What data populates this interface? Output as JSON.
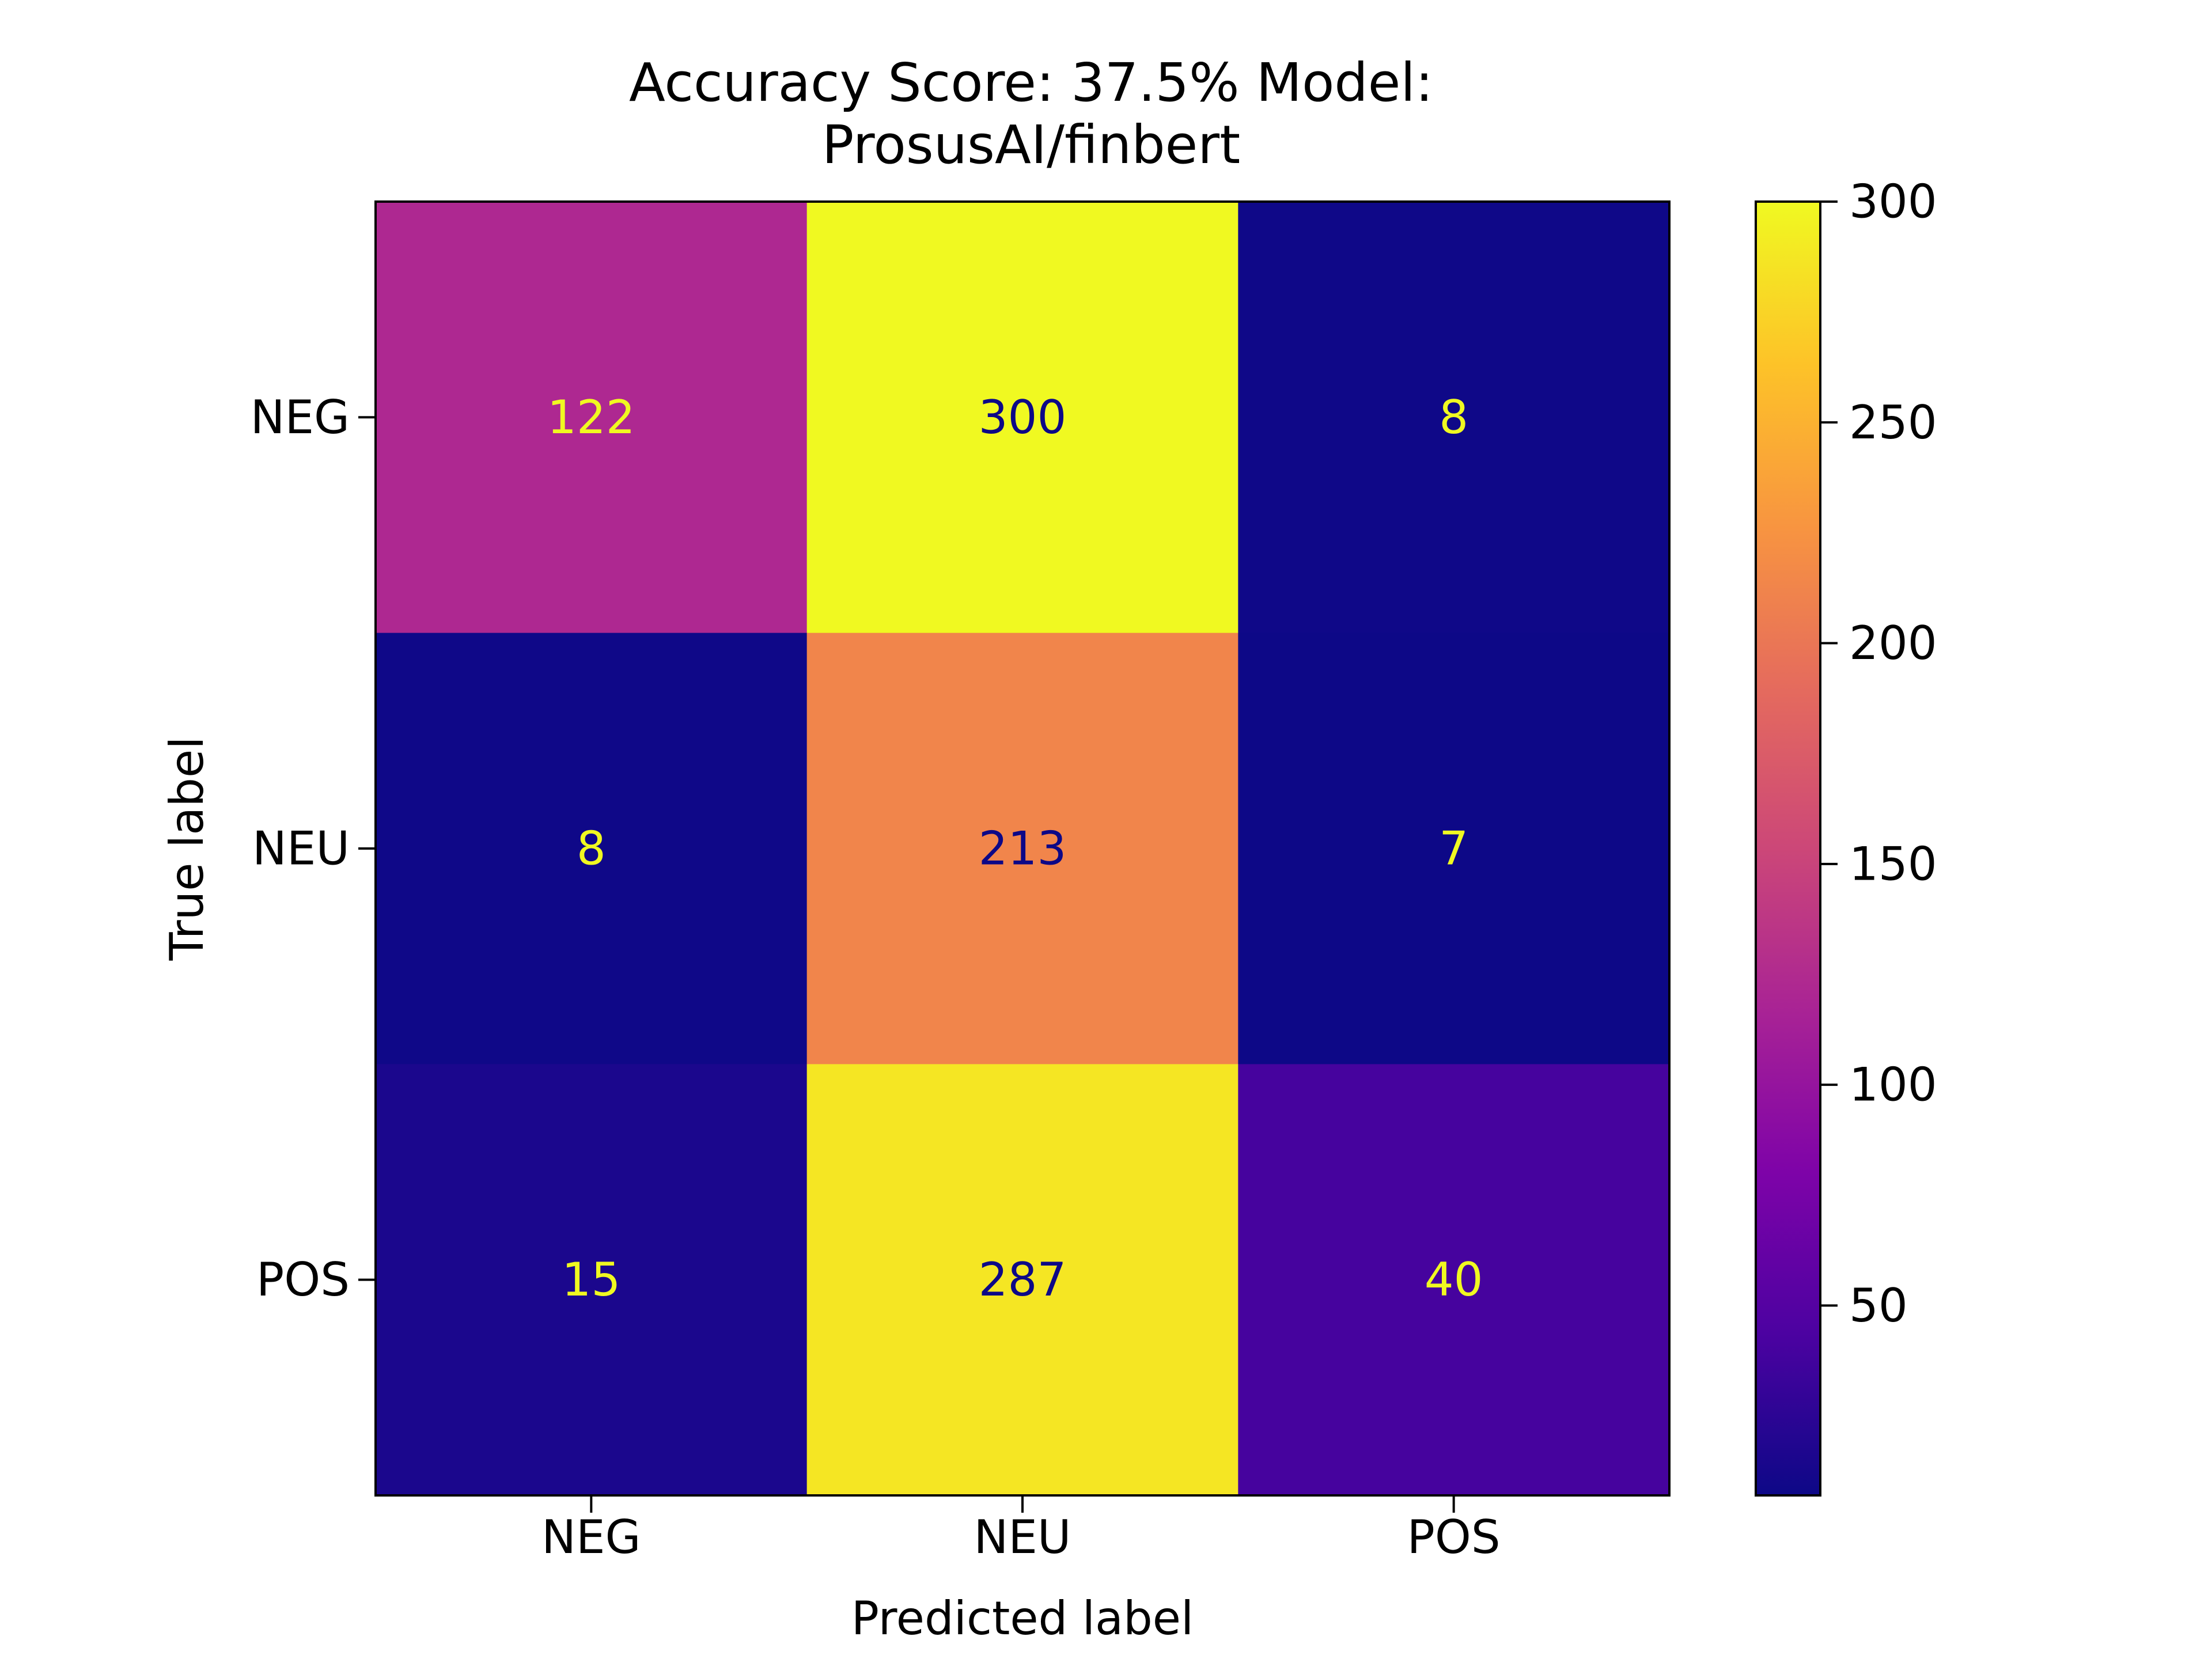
{
  "chart_data": {
    "type": "heatmap",
    "title": "Accuracy Score: 37.5% Model:",
    "subtitle": "ProsusAI/finbert",
    "xlabel": "Predicted label",
    "ylabel": "True label",
    "x_categories": [
      "NEG",
      "NEU",
      "POS"
    ],
    "y_categories": [
      "NEG",
      "NEU",
      "POS"
    ],
    "matrix": [
      [
        122,
        300,
        8
      ],
      [
        8,
        213,
        7
      ],
      [
        15,
        287,
        40
      ]
    ],
    "colormap": "plasma",
    "colorbar": {
      "min": 7,
      "max": 300,
      "ticks": [
        50,
        100,
        150,
        200,
        250,
        300
      ]
    },
    "annotation_colors": {
      "on_dark": "#f0f921",
      "on_light": "#0d0887"
    },
    "grid": false,
    "legend": "none"
  }
}
